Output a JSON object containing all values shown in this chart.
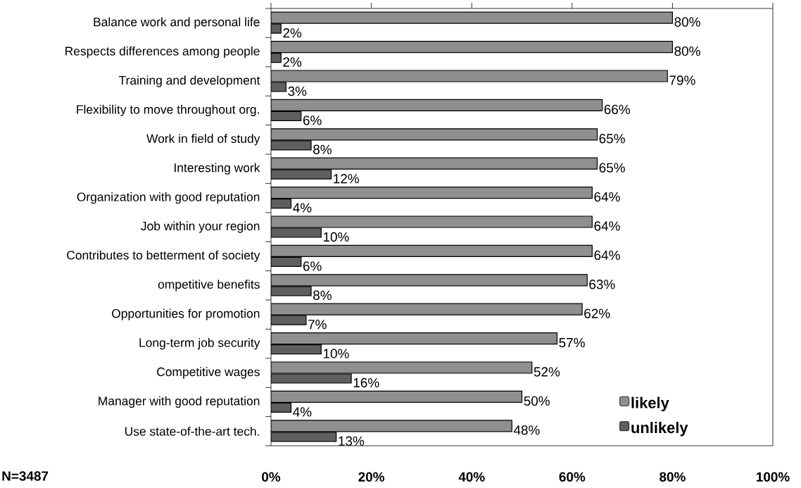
{
  "chart_data": {
    "type": "bar",
    "orientation": "horizontal",
    "categories": [
      "Balance work and personal life",
      "Respects differences among people",
      "Training and development",
      "Flexibility to move throughout org.",
      "Work in field of study",
      "Interesting work",
      "Organization with good reputation",
      "Job within your region",
      "Contributes to betterment of society",
      "ompetitive benefits",
      "Opportunities for promotion",
      "Long-term job security",
      "Competitive wages",
      "Manager with good reputation",
      "Use state-of-the-art tech."
    ],
    "series": [
      {
        "name": "likely",
        "color": "#8f8f8f",
        "values": [
          80,
          80,
          79,
          66,
          65,
          65,
          64,
          64,
          64,
          63,
          62,
          57,
          52,
          50,
          48
        ],
        "value_labels": [
          "80%",
          "80%",
          "79%",
          "66%",
          "65%",
          "65%",
          "64%",
          "64%",
          "64%",
          "63%",
          "62%",
          "57%",
          "52%",
          "50%",
          "48%"
        ]
      },
      {
        "name": "unlikely",
        "color": "#5f5f5f",
        "values": [
          2,
          2,
          3,
          6,
          8,
          12,
          4,
          10,
          6,
          8,
          7,
          10,
          16,
          4,
          13
        ],
        "value_labels": [
          "2%",
          "2%",
          "3%",
          "6%",
          "8%",
          "12%",
          "4%",
          "10%",
          "6%",
          "8%",
          "7%",
          "10%",
          "16%",
          "4%",
          "13%"
        ]
      }
    ],
    "xlim": [
      0,
      100
    ],
    "xticks": [
      {
        "value": 0,
        "label": "0%"
      },
      {
        "value": 20,
        "label": "20%"
      },
      {
        "value": 40,
        "label": "40%"
      },
      {
        "value": 60,
        "label": "60%"
      },
      {
        "value": 80,
        "label": "80%"
      },
      {
        "value": 100,
        "label": "100%"
      }
    ],
    "grid": false,
    "legend": "bottom right",
    "annotations": [
      "N=3487"
    ]
  }
}
